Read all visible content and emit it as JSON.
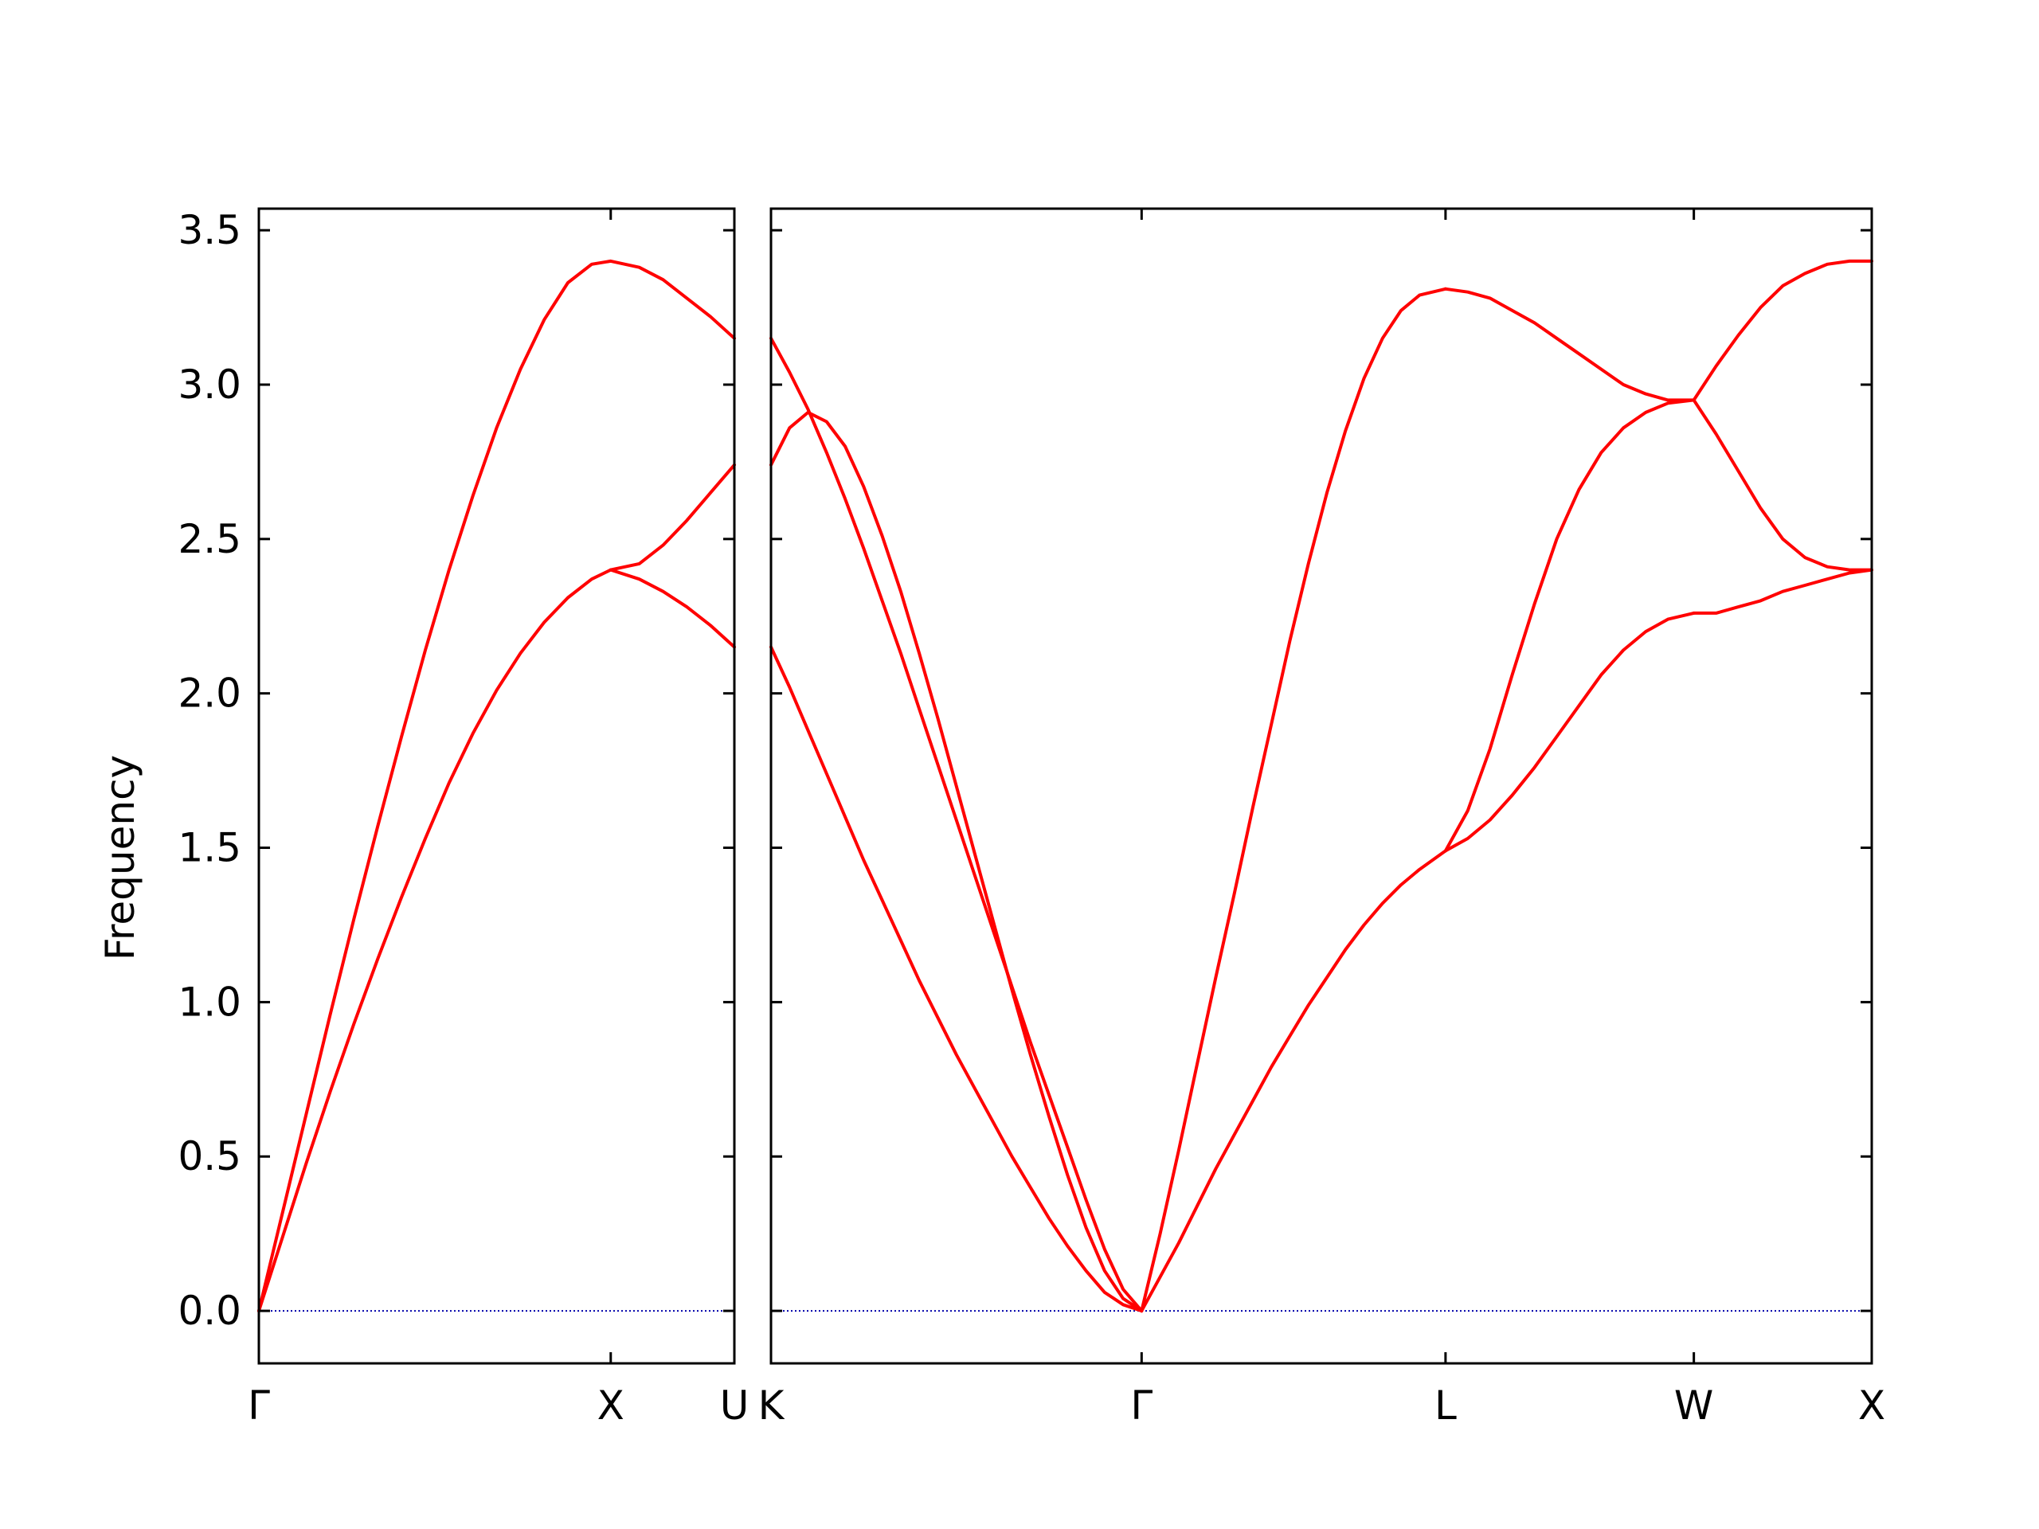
{
  "chart_data": {
    "type": "line",
    "title": "",
    "ylabel": "Frequency",
    "xlabel": "",
    "ylim": [
      -0.17,
      3.57
    ],
    "yticks": [
      "0.0",
      "0.5",
      "1.0",
      "1.5",
      "2.0",
      "2.5",
      "3.0",
      "3.5"
    ],
    "grid": false,
    "legend": "none",
    "line_color": "#ff0000",
    "zero_line_color": "#0000aa",
    "panels": [
      {
        "segments": [
          {
            "xlim": [
              0,
              1
            ],
            "x_ticks": [
              {
                "x": 0,
                "label": "Γ"
              },
              {
                "x": 0.74,
                "label": "X"
              },
              {
                "x": 1,
                "label": "U"
              }
            ],
            "branches": [
              {
                "x": [
                  0,
                  0.05,
                  0.1,
                  0.15,
                  0.2,
                  0.25,
                  0.3,
                  0.35,
                  0.4,
                  0.45,
                  0.5,
                  0.55,
                  0.6,
                  0.65,
                  0.7,
                  0.74,
                  0.8,
                  0.85,
                  0.9,
                  0.95,
                  1.0
                ],
                "y": [
                  0,
                  0.32,
                  0.64,
                  0.96,
                  1.27,
                  1.57,
                  1.86,
                  2.14,
                  2.4,
                  2.64,
                  2.86,
                  3.05,
                  3.21,
                  3.33,
                  3.39,
                  3.4,
                  3.38,
                  3.34,
                  3.28,
                  3.22,
                  3.15
                ]
              },
              {
                "x": [
                  0,
                  0.05,
                  0.1,
                  0.15,
                  0.2,
                  0.25,
                  0.3,
                  0.35,
                  0.4,
                  0.45,
                  0.5,
                  0.55,
                  0.6,
                  0.65,
                  0.7,
                  0.74,
                  0.8,
                  0.85,
                  0.9,
                  0.95,
                  1.0
                ],
                "y": [
                  0,
                  0.24,
                  0.48,
                  0.71,
                  0.93,
                  1.14,
                  1.34,
                  1.53,
                  1.71,
                  1.87,
                  2.01,
                  2.13,
                  2.23,
                  2.31,
                  2.37,
                  2.4,
                  2.42,
                  2.48,
                  2.56,
                  2.65,
                  2.74
                ]
              },
              {
                "x": [
                  0.74,
                  0.8,
                  0.85,
                  0.9,
                  0.95,
                  1.0
                ],
                "y": [
                  2.4,
                  2.37,
                  2.33,
                  2.28,
                  2.22,
                  2.15
                ]
              }
            ]
          }
        ]
      },
      {
        "segments": [
          {
            "xlim": [
              0,
              1
            ],
            "x_ticks": [
              {
                "x": 0,
                "label": "K"
              },
              {
                "x": 1,
                "label": "Γ"
              }
            ],
            "branches": [
              {
                "x": [
                  0,
                  0.05,
                  0.1,
                  0.15,
                  0.2,
                  0.25,
                  0.3,
                  0.35,
                  0.4,
                  0.45,
                  0.5,
                  0.55,
                  0.6,
                  0.65,
                  0.7,
                  0.75,
                  0.8,
                  0.85,
                  0.9,
                  0.95,
                  1.0
                ],
                "y": [
                  3.15,
                  3.04,
                  2.92,
                  2.78,
                  2.63,
                  2.47,
                  2.3,
                  2.13,
                  1.95,
                  1.77,
                  1.59,
                  1.41,
                  1.23,
                  1.05,
                  0.87,
                  0.7,
                  0.53,
                  0.36,
                  0.2,
                  0.07,
                  0.0
                ]
              },
              {
                "x": [
                  0,
                  0.05,
                  0.1,
                  0.15,
                  0.2,
                  0.25,
                  0.3,
                  0.35,
                  0.4,
                  0.45,
                  0.5,
                  0.55,
                  0.6,
                  0.65,
                  0.7,
                  0.75,
                  0.8,
                  0.85,
                  0.9,
                  0.95,
                  1.0
                ],
                "y": [
                  2.74,
                  2.86,
                  2.91,
                  2.88,
                  2.8,
                  2.67,
                  2.51,
                  2.33,
                  2.13,
                  1.92,
                  1.7,
                  1.48,
                  1.26,
                  1.04,
                  0.83,
                  0.63,
                  0.44,
                  0.27,
                  0.13,
                  0.04,
                  0.0
                ]
              },
              {
                "x": [
                  0,
                  0.05,
                  0.1,
                  0.15,
                  0.2,
                  0.25,
                  0.3,
                  0.35,
                  0.4,
                  0.45,
                  0.5,
                  0.55,
                  0.6,
                  0.65,
                  0.7,
                  0.75,
                  0.8,
                  0.85,
                  0.9,
                  0.95,
                  1.0
                ],
                "y": [
                  2.15,
                  2.02,
                  1.88,
                  1.74,
                  1.6,
                  1.46,
                  1.33,
                  1.2,
                  1.07,
                  0.95,
                  0.83,
                  0.72,
                  0.61,
                  0.5,
                  0.4,
                  0.3,
                  0.21,
                  0.13,
                  0.06,
                  0.02,
                  0.0
                ]
              }
            ]
          },
          {
            "xlim": [
              1,
              1.82
            ],
            "x_ticks": [
              {
                "x": 1.82,
                "label": "L"
              }
            ],
            "branches": [
              {
                "x": [
                  1.0,
                  1.05,
                  1.1,
                  1.15,
                  1.2,
                  1.25,
                  1.3,
                  1.35,
                  1.4,
                  1.45,
                  1.5,
                  1.55,
                  1.6,
                  1.65,
                  1.7,
                  1.75,
                  1.82
                ],
                "y": [
                  0.0,
                  0.25,
                  0.52,
                  0.8,
                  1.08,
                  1.35,
                  1.63,
                  1.9,
                  2.17,
                  2.42,
                  2.65,
                  2.85,
                  3.02,
                  3.15,
                  3.24,
                  3.29,
                  3.31
                ]
              },
              {
                "x": [
                  1.0,
                  1.05,
                  1.1,
                  1.15,
                  1.2,
                  1.25,
                  1.3,
                  1.35,
                  1.4,
                  1.45,
                  1.5,
                  1.55,
                  1.6,
                  1.65,
                  1.7,
                  1.75,
                  1.82
                ],
                "y": [
                  0.0,
                  0.11,
                  0.22,
                  0.34,
                  0.46,
                  0.57,
                  0.68,
                  0.79,
                  0.89,
                  0.99,
                  1.08,
                  1.17,
                  1.25,
                  1.32,
                  1.38,
                  1.43,
                  1.49
                ]
              }
            ]
          },
          {
            "xlim": [
              1.82,
              2.49
            ],
            "x_ticks": [
              {
                "x": 2.49,
                "label": "W"
              }
            ],
            "branches": [
              {
                "x": [
                  1.82,
                  1.88,
                  1.94,
                  2.0,
                  2.06,
                  2.12,
                  2.18,
                  2.24,
                  2.3,
                  2.36,
                  2.42,
                  2.49
                ],
                "y": [
                  3.31,
                  3.3,
                  3.28,
                  3.24,
                  3.2,
                  3.15,
                  3.1,
                  3.05,
                  3.0,
                  2.97,
                  2.95,
                  2.95
                ]
              },
              {
                "x": [
                  1.82,
                  1.88,
                  1.94,
                  2.0,
                  2.06,
                  2.12,
                  2.18,
                  2.24,
                  2.3,
                  2.36,
                  2.42,
                  2.49
                ],
                "y": [
                  1.49,
                  1.62,
                  1.82,
                  2.06,
                  2.29,
                  2.5,
                  2.66,
                  2.78,
                  2.86,
                  2.91,
                  2.94,
                  2.95
                ]
              },
              {
                "x": [
                  1.82,
                  1.88,
                  1.94,
                  2.0,
                  2.06,
                  2.12,
                  2.18,
                  2.24,
                  2.3,
                  2.36,
                  2.42,
                  2.49
                ],
                "y": [
                  1.49,
                  1.53,
                  1.59,
                  1.67,
                  1.76,
                  1.86,
                  1.96,
                  2.06,
                  2.14,
                  2.2,
                  2.24,
                  2.26
                ]
              }
            ]
          },
          {
            "xlim": [
              2.49,
              2.97
            ],
            "x_ticks": [
              {
                "x": 2.97,
                "label": "X"
              }
            ],
            "branches": [
              {
                "x": [
                  2.49,
                  2.55,
                  2.61,
                  2.67,
                  2.73,
                  2.79,
                  2.85,
                  2.91,
                  2.97
                ],
                "y": [
                  2.95,
                  3.06,
                  3.16,
                  3.25,
                  3.32,
                  3.36,
                  3.39,
                  3.4,
                  3.4
                ]
              },
              {
                "x": [
                  2.49,
                  2.55,
                  2.61,
                  2.67,
                  2.73,
                  2.79,
                  2.85,
                  2.91,
                  2.97
                ],
                "y": [
                  2.95,
                  2.84,
                  2.72,
                  2.6,
                  2.5,
                  2.44,
                  2.41,
                  2.4,
                  2.4
                ]
              },
              {
                "x": [
                  2.49,
                  2.55,
                  2.61,
                  2.67,
                  2.73,
                  2.79,
                  2.85,
                  2.91,
                  2.97
                ],
                "y": [
                  2.26,
                  2.26,
                  2.28,
                  2.3,
                  2.33,
                  2.35,
                  2.37,
                  2.39,
                  2.4
                ]
              }
            ]
          }
        ]
      }
    ]
  }
}
